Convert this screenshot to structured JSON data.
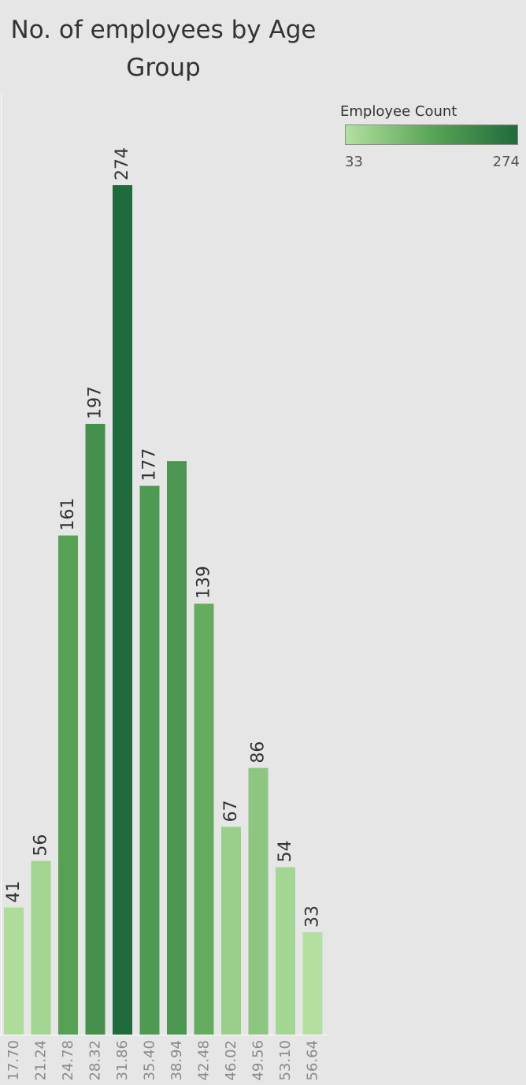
{
  "chart_data": {
    "type": "bar",
    "title": "No. of employees by Age Group",
    "title_lines": [
      "No. of employees by Age",
      "Group"
    ],
    "categories": [
      "17.70",
      "21.24",
      "24.78",
      "28.32",
      "31.86",
      "35.40",
      "38.94",
      "42.48",
      "46.02",
      "49.56",
      "53.10",
      "56.64"
    ],
    "values": [
      41,
      56,
      161,
      197,
      274,
      177,
      185,
      139,
      67,
      86,
      54,
      33
    ],
    "data_labels": [
      "41",
      "56",
      "161",
      "197",
      "274",
      "177",
      "",
      "139",
      "67",
      "86",
      "54",
      "33"
    ],
    "ylim": [
      0,
      274
    ],
    "grid": false,
    "legend": {
      "title": "Employee Count",
      "min_label": "33",
      "max_label": "274",
      "min_color": "#b3e0a0",
      "max_color": "#1f6b3c",
      "placement": "top-right"
    },
    "colors": {
      "background": "#e6e6e6",
      "bar_low": "#b3e0a0",
      "bar_mid": "#5aa557",
      "bar_high": "#1f6b3c",
      "tick_label": "#8a8a8a",
      "data_label": "#333333"
    }
  }
}
